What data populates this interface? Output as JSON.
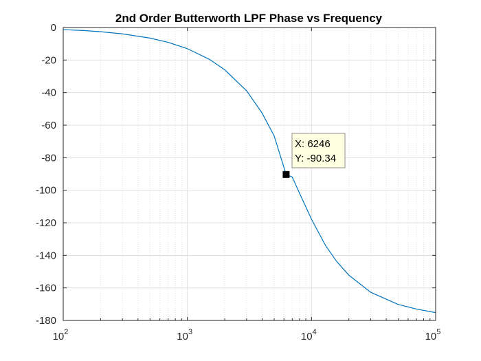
{
  "chart_data": {
    "type": "line",
    "title": "2nd Order Butterworth LPF Phase vs Frequency",
    "xlabel": "",
    "ylabel": "",
    "x_scale": "log",
    "xlim": [
      100,
      100000
    ],
    "ylim": [
      -180,
      0
    ],
    "grid": true,
    "minor_grid_x": true,
    "x_ticks": [
      {
        "value": 100,
        "base": "10",
        "exp": "2"
      },
      {
        "value": 1000,
        "base": "10",
        "exp": "3"
      },
      {
        "value": 10000,
        "base": "10",
        "exp": "4"
      },
      {
        "value": 100000,
        "base": "10",
        "exp": "5"
      }
    ],
    "y_ticks": [
      0,
      -20,
      -40,
      -60,
      -80,
      -100,
      -120,
      -140,
      -160,
      -180
    ],
    "y_tick_labels": [
      "0",
      "-20",
      "-40",
      "-60",
      "-80",
      "-100",
      "-120",
      "-140",
      "-160",
      "-180"
    ],
    "series": [
      {
        "color": "#0072BD",
        "points": [
          [
            100,
            -1.3
          ],
          [
            150,
            -1.9
          ],
          [
            200,
            -2.6
          ],
          [
            300,
            -3.9
          ],
          [
            500,
            -6.5
          ],
          [
            700,
            -9.1
          ],
          [
            1000,
            -13.0
          ],
          [
            1500,
            -19.5
          ],
          [
            2000,
            -26.0
          ],
          [
            3000,
            -38.9
          ],
          [
            4000,
            -52.6
          ],
          [
            5000,
            -66.6
          ],
          [
            6246,
            -90.34
          ],
          [
            7000,
            -91.9
          ],
          [
            8000,
            -101.8
          ],
          [
            10000,
            -117.8
          ],
          [
            13000,
            -134.1
          ],
          [
            16000,
            -143.9
          ],
          [
            20000,
            -152.2
          ],
          [
            30000,
            -162.7
          ],
          [
            50000,
            -170.2
          ],
          [
            70000,
            -173.0
          ],
          [
            100000,
            -175.2
          ]
        ]
      }
    ],
    "datatip": {
      "x": 6246,
      "y": -90.34,
      "x_label": "X: 6246",
      "y_label": "Y: -90.34"
    },
    "colors": {
      "line": "#0072BD",
      "axis": "#262626",
      "grid": "#dfdfdf",
      "tip_bg": "#ffffe1"
    }
  }
}
